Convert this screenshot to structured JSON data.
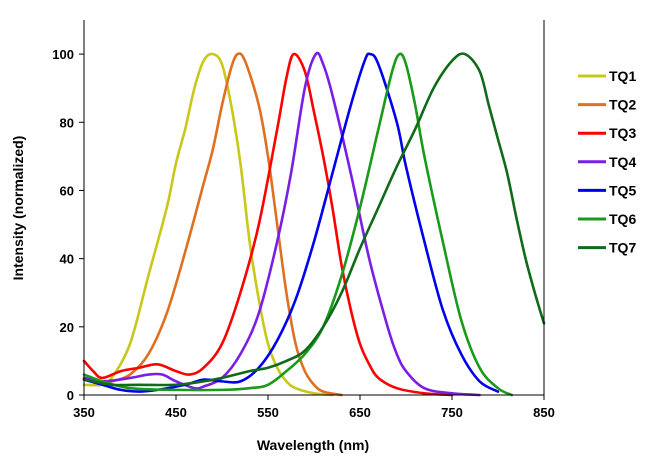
{
  "chart_data": {
    "type": "line",
    "title": "",
    "xlabel": "Wavelength (nm)",
    "ylabel": "Intensity (normalized)",
    "xlim": [
      350,
      850
    ],
    "ylim": [
      0,
      110
    ],
    "xticks": [
      350,
      450,
      550,
      650,
      750,
      850
    ],
    "yticks": [
      0,
      20,
      40,
      60,
      80,
      100
    ],
    "grid": false,
    "legend_position": "right",
    "series": [
      {
        "name": "TQ1",
        "color": "#c8c81a",
        "points": [
          [
            350,
            3
          ],
          [
            370,
            3
          ],
          [
            380,
            5
          ],
          [
            400,
            15
          ],
          [
            420,
            35
          ],
          [
            440,
            55
          ],
          [
            450,
            68
          ],
          [
            460,
            78
          ],
          [
            470,
            90
          ],
          [
            480,
            98
          ],
          [
            490,
            100
          ],
          [
            500,
            97
          ],
          [
            510,
            85
          ],
          [
            520,
            68
          ],
          [
            530,
            45
          ],
          [
            540,
            28
          ],
          [
            550,
            15
          ],
          [
            560,
            8
          ],
          [
            570,
            4
          ],
          [
            580,
            2
          ],
          [
            600,
            0.5
          ],
          [
            620,
            0
          ]
        ]
      },
      {
        "name": "TQ2",
        "color": "#e07020",
        "points": [
          [
            350,
            5
          ],
          [
            370,
            4
          ],
          [
            380,
            4
          ],
          [
            400,
            6
          ],
          [
            420,
            12
          ],
          [
            440,
            24
          ],
          [
            460,
            42
          ],
          [
            480,
            62
          ],
          [
            490,
            72
          ],
          [
            500,
            85
          ],
          [
            510,
            96
          ],
          [
            517,
            100
          ],
          [
            525,
            98
          ],
          [
            540,
            85
          ],
          [
            550,
            70
          ],
          [
            560,
            50
          ],
          [
            570,
            30
          ],
          [
            580,
            15
          ],
          [
            590,
            7
          ],
          [
            600,
            3
          ],
          [
            610,
            1
          ],
          [
            630,
            0
          ]
        ]
      },
      {
        "name": "TQ3",
        "color": "#ff0000",
        "points": [
          [
            350,
            10
          ],
          [
            360,
            7
          ],
          [
            370,
            5
          ],
          [
            390,
            7
          ],
          [
            410,
            8
          ],
          [
            430,
            9
          ],
          [
            450,
            7
          ],
          [
            465,
            6
          ],
          [
            480,
            8
          ],
          [
            500,
            15
          ],
          [
            520,
            30
          ],
          [
            540,
            50
          ],
          [
            560,
            78
          ],
          [
            570,
            93
          ],
          [
            578,
            100
          ],
          [
            590,
            95
          ],
          [
            600,
            83
          ],
          [
            610,
            70
          ],
          [
            620,
            55
          ],
          [
            630,
            38
          ],
          [
            640,
            25
          ],
          [
            650,
            15
          ],
          [
            660,
            9
          ],
          [
            670,
            5
          ],
          [
            690,
            2
          ],
          [
            720,
            0.5
          ],
          [
            750,
            0
          ]
        ]
      },
      {
        "name": "TQ4",
        "color": "#7a1ee6",
        "points": [
          [
            350,
            5
          ],
          [
            370,
            4
          ],
          [
            400,
            5
          ],
          [
            420,
            6
          ],
          [
            435,
            6
          ],
          [
            450,
            4
          ],
          [
            470,
            2
          ],
          [
            480,
            2.5
          ],
          [
            500,
            5
          ],
          [
            520,
            12
          ],
          [
            540,
            24
          ],
          [
            560,
            45
          ],
          [
            575,
            65
          ],
          [
            590,
            90
          ],
          [
            602,
            100
          ],
          [
            610,
            97
          ],
          [
            620,
            88
          ],
          [
            640,
            65
          ],
          [
            660,
            40
          ],
          [
            680,
            20
          ],
          [
            690,
            12
          ],
          [
            700,
            7
          ],
          [
            720,
            2
          ],
          [
            750,
            0.5
          ],
          [
            780,
            0
          ]
        ]
      },
      {
        "name": "TQ5",
        "color": "#0000ee",
        "points": [
          [
            350,
            4.5
          ],
          [
            370,
            3
          ],
          [
            390,
            1.5
          ],
          [
            410,
            1
          ],
          [
            430,
            1.5
          ],
          [
            460,
            3
          ],
          [
            480,
            4.5
          ],
          [
            500,
            4
          ],
          [
            520,
            4
          ],
          [
            540,
            8
          ],
          [
            560,
            16
          ],
          [
            580,
            28
          ],
          [
            600,
            45
          ],
          [
            620,
            65
          ],
          [
            640,
            85
          ],
          [
            655,
            98
          ],
          [
            661,
            100
          ],
          [
            670,
            97
          ],
          [
            690,
            80
          ],
          [
            700,
            67
          ],
          [
            720,
            45
          ],
          [
            740,
            25
          ],
          [
            760,
            12
          ],
          [
            780,
            4
          ],
          [
            800,
            1
          ]
        ]
      },
      {
        "name": "TQ6",
        "color": "#1a9a1a",
        "points": [
          [
            350,
            6
          ],
          [
            370,
            4
          ],
          [
            400,
            2
          ],
          [
            450,
            1.5
          ],
          [
            500,
            1.5
          ],
          [
            530,
            2
          ],
          [
            550,
            3
          ],
          [
            570,
            7
          ],
          [
            590,
            12
          ],
          [
            610,
            20
          ],
          [
            630,
            35
          ],
          [
            650,
            55
          ],
          [
            670,
            78
          ],
          [
            685,
            95
          ],
          [
            693,
            100
          ],
          [
            700,
            97
          ],
          [
            710,
            85
          ],
          [
            720,
            70
          ],
          [
            740,
            45
          ],
          [
            760,
            22
          ],
          [
            780,
            8
          ],
          [
            800,
            2
          ],
          [
            815,
            0
          ]
        ]
      },
      {
        "name": "TQ7",
        "color": "#0f6a1a",
        "points": [
          [
            350,
            4.5
          ],
          [
            380,
            3
          ],
          [
            410,
            3
          ],
          [
            450,
            3
          ],
          [
            480,
            4
          ],
          [
            500,
            5
          ],
          [
            530,
            7
          ],
          [
            550,
            8
          ],
          [
            570,
            10
          ],
          [
            590,
            13
          ],
          [
            610,
            20
          ],
          [
            630,
            30
          ],
          [
            650,
            43
          ],
          [
            670,
            55
          ],
          [
            690,
            67
          ],
          [
            710,
            78
          ],
          [
            730,
            90
          ],
          [
            750,
            98
          ],
          [
            764,
            100
          ],
          [
            780,
            95
          ],
          [
            790,
            85
          ],
          [
            800,
            75
          ],
          [
            810,
            65
          ],
          [
            820,
            52
          ],
          [
            830,
            40
          ],
          [
            840,
            30
          ],
          [
            850,
            21
          ]
        ]
      }
    ]
  }
}
